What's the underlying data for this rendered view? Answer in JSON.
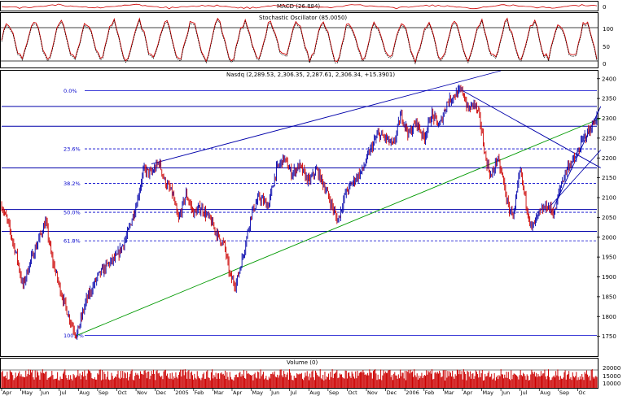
{
  "macd_panel": {
    "label": "MACD (26.884)",
    "y_ticks": [
      "0"
    ]
  },
  "stoch_panel": {
    "label": "Stochastic Oscillator (85.0050)",
    "y_ticks": [
      "100",
      "50",
      "0"
    ]
  },
  "main_panel": {
    "label": "Nasdq (2,289.53, 2,306.35, 2,287.61, 2,306.34, +15.3901)"
  },
  "volume_panel": {
    "label": "Volume (0)",
    "y_ticks": [
      "20000",
      "15000",
      "10000"
    ]
  },
  "colors": {
    "up": "#0000aa",
    "down": "#cc0000",
    "trendline": "#0000aa",
    "support": "#009900",
    "fib": "#0000cc",
    "grid": "#000000"
  },
  "chart_data": {
    "type": "ohlc",
    "title": "Nasdq (2,289.53, 2,306.35, 2,287.61, 2,306.34, +15.3901)",
    "ylim": [
      1700,
      2420
    ],
    "y_ticks": [
      1750,
      1800,
      1850,
      1900,
      1950,
      2000,
      2050,
      2100,
      2150,
      2200,
      2250,
      2300,
      2350,
      2400
    ],
    "x_ticks": [
      "Apr",
      "May",
      "Jun",
      "Jul",
      "Aug",
      "Sep",
      "Oct",
      "Nov",
      "Dec",
      "2005",
      "Feb",
      "Mar",
      "Apr",
      "May",
      "Jun",
      "Jul",
      "Aug",
      "Sep",
      "Oct",
      "Nov",
      "Dec",
      "2006",
      "Feb",
      "Mar",
      "Apr",
      "May",
      "Jun",
      "Jul",
      "Aug",
      "Sep",
      "Oc"
    ],
    "fibonacci": [
      {
        "label": "0.0%",
        "value": 2370
      },
      {
        "label": "23.6%",
        "value": 2223
      },
      {
        "label": "38.2%",
        "value": 2136
      },
      {
        "label": "50.0%",
        "value": 2063
      },
      {
        "label": "61.8%",
        "value": 1991
      },
      {
        "label": "100.0%",
        "value": 1752
      }
    ],
    "horizontal_lines": [
      2330,
      2280,
      2175,
      2070,
      2015
    ],
    "anchors": [
      {
        "x": 0.0,
        "y": 2080
      },
      {
        "x": 0.3,
        "y": 2040
      },
      {
        "x": 0.8,
        "y": 1950
      },
      {
        "x": 1.1,
        "y": 1875
      },
      {
        "x": 1.5,
        "y": 1940
      },
      {
        "x": 1.9,
        "y": 1990
      },
      {
        "x": 2.3,
        "y": 2040
      },
      {
        "x": 2.6,
        "y": 1950
      },
      {
        "x": 3.1,
        "y": 1860
      },
      {
        "x": 3.5,
        "y": 1800
      },
      {
        "x": 3.9,
        "y": 1752
      },
      {
        "x": 4.4,
        "y": 1840
      },
      {
        "x": 5.0,
        "y": 1900
      },
      {
        "x": 5.5,
        "y": 1930
      },
      {
        "x": 6.0,
        "y": 1950
      },
      {
        "x": 6.5,
        "y": 2000
      },
      {
        "x": 7.0,
        "y": 2080
      },
      {
        "x": 7.4,
        "y": 2170
      },
      {
        "x": 7.8,
        "y": 2160
      },
      {
        "x": 8.2,
        "y": 2190
      },
      {
        "x": 8.5,
        "y": 2140
      },
      {
        "x": 8.9,
        "y": 2110
      },
      {
        "x": 9.2,
        "y": 2040
      },
      {
        "x": 9.6,
        "y": 2110
      },
      {
        "x": 10.0,
        "y": 2060
      },
      {
        "x": 10.4,
        "y": 2075
      },
      {
        "x": 10.9,
        "y": 2040
      },
      {
        "x": 11.3,
        "y": 2000
      },
      {
        "x": 11.6,
        "y": 1980
      },
      {
        "x": 11.9,
        "y": 1900
      },
      {
        "x": 12.2,
        "y": 1880
      },
      {
        "x": 12.6,
        "y": 1960
      },
      {
        "x": 13.0,
        "y": 2060
      },
      {
        "x": 13.4,
        "y": 2100
      },
      {
        "x": 13.9,
        "y": 2080
      },
      {
        "x": 14.3,
        "y": 2170
      },
      {
        "x": 14.7,
        "y": 2200
      },
      {
        "x": 15.1,
        "y": 2160
      },
      {
        "x": 15.5,
        "y": 2180
      },
      {
        "x": 16.0,
        "y": 2140
      },
      {
        "x": 16.4,
        "y": 2170
      },
      {
        "x": 16.8,
        "y": 2130
      },
      {
        "x": 17.2,
        "y": 2080
      },
      {
        "x": 17.5,
        "y": 2040
      },
      {
        "x": 17.9,
        "y": 2110
      },
      {
        "x": 18.3,
        "y": 2140
      },
      {
        "x": 18.8,
        "y": 2170
      },
      {
        "x": 19.2,
        "y": 2220
      },
      {
        "x": 19.6,
        "y": 2260
      },
      {
        "x": 20.0,
        "y": 2250
      },
      {
        "x": 20.4,
        "y": 2230
      },
      {
        "x": 20.8,
        "y": 2310
      },
      {
        "x": 21.2,
        "y": 2260
      },
      {
        "x": 21.6,
        "y": 2290
      },
      {
        "x": 22.0,
        "y": 2250
      },
      {
        "x": 22.4,
        "y": 2310
      },
      {
        "x": 22.8,
        "y": 2280
      },
      {
        "x": 23.2,
        "y": 2340
      },
      {
        "x": 23.6,
        "y": 2360
      },
      {
        "x": 24.0,
        "y": 2370
      },
      {
        "x": 24.3,
        "y": 2320
      },
      {
        "x": 24.6,
        "y": 2340
      },
      {
        "x": 24.9,
        "y": 2300
      },
      {
        "x": 25.2,
        "y": 2200
      },
      {
        "x": 25.5,
        "y": 2150
      },
      {
        "x": 25.8,
        "y": 2200
      },
      {
        "x": 26.1,
        "y": 2150
      },
      {
        "x": 26.4,
        "y": 2070
      },
      {
        "x": 26.7,
        "y": 2060
      },
      {
        "x": 27.0,
        "y": 2170
      },
      {
        "x": 27.3,
        "y": 2090
      },
      {
        "x": 27.6,
        "y": 2020
      },
      {
        "x": 28.0,
        "y": 2060
      },
      {
        "x": 28.4,
        "y": 2080
      },
      {
        "x": 28.8,
        "y": 2060
      },
      {
        "x": 29.1,
        "y": 2130
      },
      {
        "x": 29.5,
        "y": 2180
      },
      {
        "x": 29.9,
        "y": 2200
      },
      {
        "x": 30.3,
        "y": 2250
      },
      {
        "x": 30.7,
        "y": 2275
      },
      {
        "x": 31.0,
        "y": 2306
      }
    ]
  }
}
